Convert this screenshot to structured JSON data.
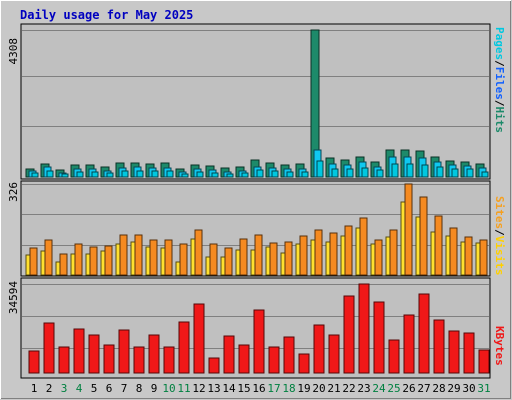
{
  "title": "Daily usage for May 2025",
  "colors": {
    "background": "#c8c8c8",
    "plot_bg": "#c0c0c0",
    "grid": "#808080",
    "title": "#0000c0",
    "hits": "#1d8a6a",
    "files": "#10c8f0",
    "pages": "#00c8e0",
    "visits": "#f58a20",
    "sites": "#ffe030",
    "kbytes": "#f01818",
    "weekend_label": "#008040",
    "weekday_label": "#000000"
  },
  "labels": {
    "hits_max": "4308",
    "visits_max": "326",
    "kbytes_max": "34594",
    "right_pages": "Pages",
    "right_files": "Files",
    "right_hits": "Hits",
    "right_sites": "Sites",
    "right_visits": "Visits",
    "right_kbytes": "KBytes",
    "slash": "/"
  },
  "chart_data": [
    {
      "type": "bar",
      "categories": [
        "1",
        "2",
        "3",
        "4",
        "5",
        "6",
        "7",
        "8",
        "9",
        "10",
        "11",
        "12",
        "13",
        "14",
        "15",
        "16",
        "17",
        "18",
        "19",
        "20",
        "21",
        "22",
        "23",
        "24",
        "25",
        "26",
        "27",
        "28",
        "29",
        "30",
        "31"
      ],
      "weekend_days": [
        "3",
        "4",
        "10",
        "11",
        "17",
        "18",
        "24",
        "25",
        "31"
      ],
      "ylim": [
        0,
        4308
      ],
      "series": [
        {
          "name": "Hits",
          "values": [
            240,
            390,
            200,
            360,
            340,
            300,
            420,
            420,
            380,
            420,
            220,
            360,
            320,
            260,
            280,
            490,
            400,
            340,
            370,
            4308,
            560,
            490,
            600,
            440,
            780,
            800,
            770,
            600,
            480,
            440,
            380
          ]
        },
        {
          "name": "Files",
          "values": [
            170,
            280,
            130,
            240,
            220,
            180,
            260,
            280,
            260,
            260,
            140,
            240,
            200,
            160,
            180,
            300,
            260,
            220,
            220,
            800,
            380,
            340,
            430,
            300,
            580,
            600,
            560,
            440,
            360,
            330,
            250
          ]
        },
        {
          "name": "Pages",
          "values": [
            110,
            180,
            80,
            150,
            140,
            110,
            170,
            180,
            170,
            170,
            90,
            160,
            130,
            100,
            120,
            200,
            170,
            150,
            150,
            470,
            240,
            220,
            270,
            200,
            370,
            390,
            360,
            290,
            230,
            220,
            160
          ]
        }
      ]
    },
    {
      "type": "bar",
      "categories": [
        "1",
        "2",
        "3",
        "4",
        "5",
        "6",
        "7",
        "8",
        "9",
        "10",
        "11",
        "12",
        "13",
        "14",
        "15",
        "16",
        "17",
        "18",
        "19",
        "20",
        "21",
        "22",
        "23",
        "24",
        "25",
        "26",
        "27",
        "28",
        "29",
        "30",
        "31"
      ],
      "ylim": [
        0,
        326
      ],
      "series": [
        {
          "name": "Visits",
          "values": [
            95,
            125,
            75,
            110,
            100,
            105,
            145,
            145,
            125,
            125,
            110,
            160,
            110,
            95,
            130,
            145,
            115,
            120,
            140,
            160,
            150,
            175,
            204,
            125,
            160,
            326,
            280,
            212,
            170,
            135,
            125
          ]
        },
        {
          "name": "Sites",
          "values": [
            70,
            85,
            45,
            75,
            75,
            85,
            110,
            120,
            100,
            95,
            45,
            130,
            65,
            65,
            90,
            90,
            100,
            80,
            110,
            125,
            120,
            140,
            170,
            110,
            135,
            260,
            207,
            155,
            140,
            120,
            115
          ]
        }
      ]
    },
    {
      "type": "bar",
      "categories": [
        "1",
        "2",
        "3",
        "4",
        "5",
        "6",
        "7",
        "8",
        "9",
        "10",
        "11",
        "12",
        "13",
        "14",
        "15",
        "16",
        "17",
        "18",
        "19",
        "20",
        "21",
        "22",
        "23",
        "24",
        "25",
        "26",
        "27",
        "28",
        "29",
        "30",
        "31"
      ],
      "ylim": [
        0,
        34594
      ],
      "series": [
        {
          "name": "KBytes",
          "values": [
            8500,
            19500,
            10000,
            17200,
            14700,
            11000,
            16800,
            10000,
            14700,
            10000,
            20000,
            27000,
            6000,
            14200,
            11000,
            24500,
            10000,
            14000,
            7500,
            18500,
            14700,
            30000,
            34594,
            27700,
            12800,
            22500,
            30800,
            20500,
            16500,
            15500,
            8800
          ]
        }
      ]
    }
  ]
}
